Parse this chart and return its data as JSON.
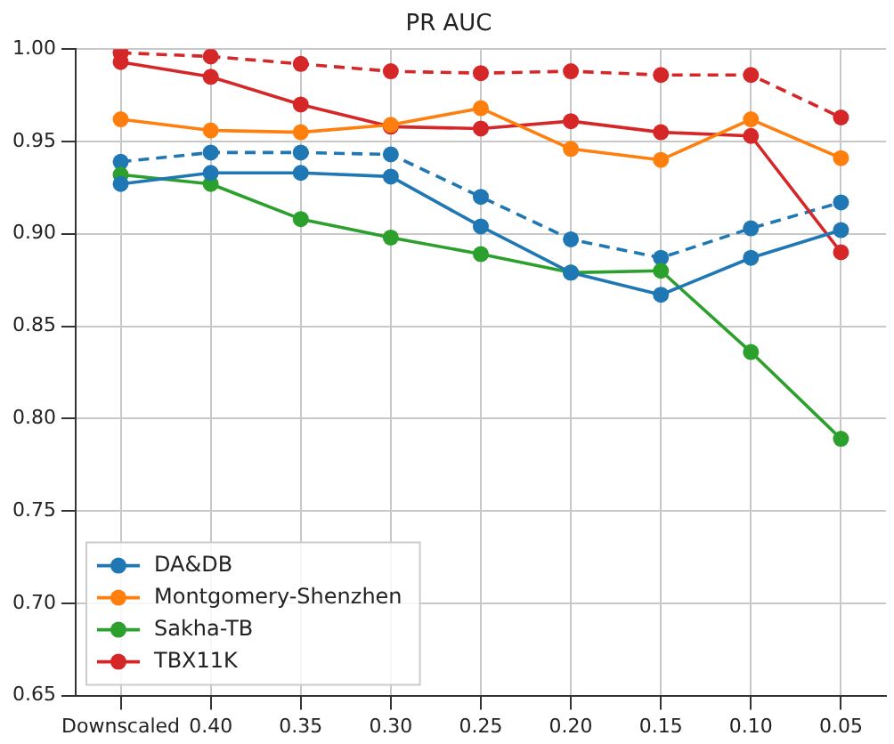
{
  "chart_data": {
    "type": "line",
    "title": "PR AUC",
    "categories": [
      "Downscaled",
      "0.40",
      "0.35",
      "0.30",
      "0.25",
      "0.20",
      "0.15",
      "0.10",
      "0.05"
    ],
    "series": [
      {
        "name": "DA&DB",
        "color": "#1f77b4",
        "values": [
          0.927,
          0.933,
          0.933,
          0.931,
          0.904,
          0.879,
          0.867,
          0.887,
          0.902
        ]
      },
      {
        "name": "Montgomery-Shenzhen",
        "color": "#ff7f0e",
        "values": [
          0.962,
          0.956,
          0.955,
          0.959,
          0.968,
          0.946,
          0.94,
          0.962,
          0.941
        ]
      },
      {
        "name": "Sakha-TB",
        "color": "#2ca02c",
        "values": [
          0.932,
          0.927,
          0.908,
          0.898,
          0.889,
          0.879,
          0.88,
          0.836,
          0.789
        ]
      },
      {
        "name": "TBX11K",
        "color": "#d62728",
        "values": [
          0.993,
          0.985,
          0.97,
          0.958,
          0.957,
          0.961,
          0.955,
          0.953,
          0.89
        ]
      },
      {
        "color": "#1f77b4",
        "line_style": "dashed",
        "values": [
          0.939,
          0.944,
          0.944,
          0.943,
          0.92,
          0.897,
          0.887,
          0.903,
          0.917
        ]
      },
      {
        "color": "#d62728",
        "line_style": "dashed",
        "values": [
          0.998,
          0.996,
          0.992,
          0.988,
          0.987,
          0.988,
          0.986,
          0.986,
          0.963
        ]
      }
    ],
    "ylim": [
      0.65,
      1.0
    ],
    "yticks": [
      0.65,
      {
        "value": 0.7,
        "label": "0.70"
      },
      0.75,
      {
        "value": 0.8,
        "label": "0.80"
      },
      0.85,
      {
        "value": 0.9,
        "label": "0.90"
      },
      0.95,
      {
        "value": 1,
        "label": "1.00"
      }
    ],
    "grid": true,
    "legend": "bottom left",
    "marker": "circle",
    "line_style": "solid"
  }
}
